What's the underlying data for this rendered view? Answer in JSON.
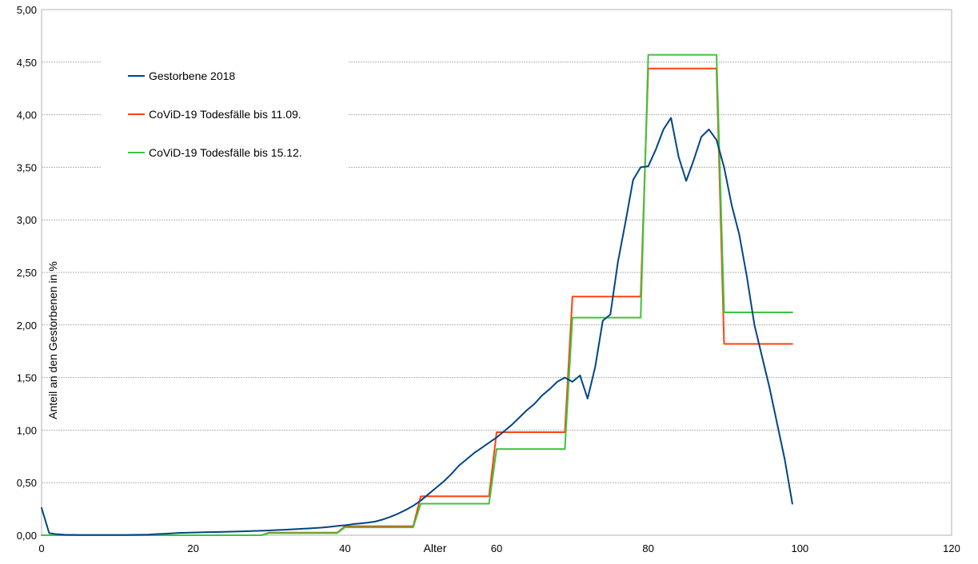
{
  "chart_data": {
    "type": "line",
    "title": "",
    "xlabel": "Alter",
    "ylabel": "Anteil an den Gestorbenen in %",
    "xlim": [
      0,
      120
    ],
    "ylim": [
      0,
      5
    ],
    "x_ticks": [
      0,
      20,
      40,
      60,
      80,
      100,
      120
    ],
    "x_tick_labels": [
      "0",
      "20",
      "40",
      "60",
      "80",
      "100",
      "120"
    ],
    "y_ticks": [
      0,
      0.5,
      1,
      1.5,
      2,
      2.5,
      3,
      3.5,
      4,
      4.5,
      5
    ],
    "y_tick_labels": [
      "0,00",
      "0,50",
      "1,00",
      "1,50",
      "2,00",
      "2,50",
      "3,00",
      "3,50",
      "4,00",
      "4,50",
      "5,00"
    ],
    "grid": "horizontal",
    "legend_position": "top-left",
    "series": [
      {
        "name": "Gestorbene 2018",
        "color": "#004586",
        "points": [
          [
            0,
            0.26
          ],
          [
            1,
            0.02
          ],
          [
            2,
            0.01
          ],
          [
            3,
            0.005
          ],
          [
            4,
            0.004
          ],
          [
            5,
            0.003
          ],
          [
            6,
            0.003
          ],
          [
            7,
            0.003
          ],
          [
            8,
            0.003
          ],
          [
            9,
            0.003
          ],
          [
            10,
            0.003
          ],
          [
            11,
            0.003
          ],
          [
            12,
            0.004
          ],
          [
            13,
            0.005
          ],
          [
            14,
            0.006
          ],
          [
            15,
            0.01
          ],
          [
            16,
            0.013
          ],
          [
            17,
            0.017
          ],
          [
            18,
            0.022
          ],
          [
            19,
            0.024
          ],
          [
            20,
            0.026
          ],
          [
            21,
            0.028
          ],
          [
            22,
            0.029
          ],
          [
            23,
            0.03
          ],
          [
            24,
            0.032
          ],
          [
            25,
            0.034
          ],
          [
            26,
            0.036
          ],
          [
            27,
            0.038
          ],
          [
            28,
            0.041
          ],
          [
            29,
            0.043
          ],
          [
            30,
            0.046
          ],
          [
            31,
            0.049
          ],
          [
            32,
            0.052
          ],
          [
            33,
            0.056
          ],
          [
            34,
            0.06
          ],
          [
            35,
            0.064
          ],
          [
            36,
            0.068
          ],
          [
            37,
            0.073
          ],
          [
            38,
            0.08
          ],
          [
            39,
            0.088
          ],
          [
            40,
            0.095
          ],
          [
            41,
            0.105
          ],
          [
            42,
            0.112
          ],
          [
            43,
            0.12
          ],
          [
            44,
            0.13
          ],
          [
            45,
            0.15
          ],
          [
            46,
            0.175
          ],
          [
            47,
            0.205
          ],
          [
            48,
            0.24
          ],
          [
            49,
            0.28
          ],
          [
            50,
            0.33
          ],
          [
            51,
            0.39
          ],
          [
            52,
            0.45
          ],
          [
            53,
            0.51
          ],
          [
            54,
            0.58
          ],
          [
            55,
            0.66
          ],
          [
            56,
            0.72
          ],
          [
            57,
            0.78
          ],
          [
            58,
            0.83
          ],
          [
            59,
            0.88
          ],
          [
            60,
            0.93
          ],
          [
            61,
            0.99
          ],
          [
            62,
            1.05
          ],
          [
            63,
            1.12
          ],
          [
            64,
            1.19
          ],
          [
            65,
            1.25
          ],
          [
            66,
            1.33
          ],
          [
            67,
            1.39
          ],
          [
            68,
            1.46
          ],
          [
            69,
            1.5
          ],
          [
            70,
            1.46
          ],
          [
            71,
            1.52
          ],
          [
            72,
            1.3
          ],
          [
            73,
            1.6
          ],
          [
            74,
            2.04
          ],
          [
            75,
            2.1
          ],
          [
            76,
            2.6
          ],
          [
            77,
            2.98
          ],
          [
            78,
            3.38
          ],
          [
            79,
            3.5
          ],
          [
            80,
            3.51
          ],
          [
            81,
            3.67
          ],
          [
            82,
            3.86
          ],
          [
            83,
            3.97
          ],
          [
            84,
            3.6
          ],
          [
            85,
            3.37
          ],
          [
            86,
            3.57
          ],
          [
            87,
            3.79
          ],
          [
            88,
            3.86
          ],
          [
            89,
            3.76
          ],
          [
            90,
            3.5
          ],
          [
            91,
            3.14
          ],
          [
            92,
            2.86
          ],
          [
            93,
            2.46
          ],
          [
            94,
            2.0
          ],
          [
            95,
            1.7
          ],
          [
            96,
            1.4
          ],
          [
            97,
            1.06
          ],
          [
            98,
            0.72
          ],
          [
            99,
            0.3
          ]
        ]
      },
      {
        "name": "CoViD-19 Todesfälle bis 11.09.",
        "color": "#ff420e",
        "points": [
          [
            0,
            0
          ],
          [
            29,
            0
          ],
          [
            30,
            0.025
          ],
          [
            39,
            0.025
          ],
          [
            40,
            0.085
          ],
          [
            49,
            0.085
          ],
          [
            50,
            0.37
          ],
          [
            59,
            0.37
          ],
          [
            60,
            0.98
          ],
          [
            69,
            0.98
          ],
          [
            70,
            2.27
          ],
          [
            79,
            2.27
          ],
          [
            80,
            4.44
          ],
          [
            89,
            4.44
          ],
          [
            90,
            1.82
          ],
          [
            99,
            1.82
          ]
        ]
      },
      {
        "name": "CoViD-19 Todesfälle bis 15.12.",
        "color": "#3bc53b",
        "points": [
          [
            0,
            0
          ],
          [
            29,
            0
          ],
          [
            30,
            0.02
          ],
          [
            39,
            0.02
          ],
          [
            40,
            0.075
          ],
          [
            49,
            0.075
          ],
          [
            50,
            0.3
          ],
          [
            59,
            0.3
          ],
          [
            60,
            0.82
          ],
          [
            69,
            0.82
          ],
          [
            70,
            2.07
          ],
          [
            79,
            2.07
          ],
          [
            80,
            4.57
          ],
          [
            89,
            4.57
          ],
          [
            90,
            2.12
          ],
          [
            99,
            2.12
          ]
        ]
      }
    ]
  }
}
